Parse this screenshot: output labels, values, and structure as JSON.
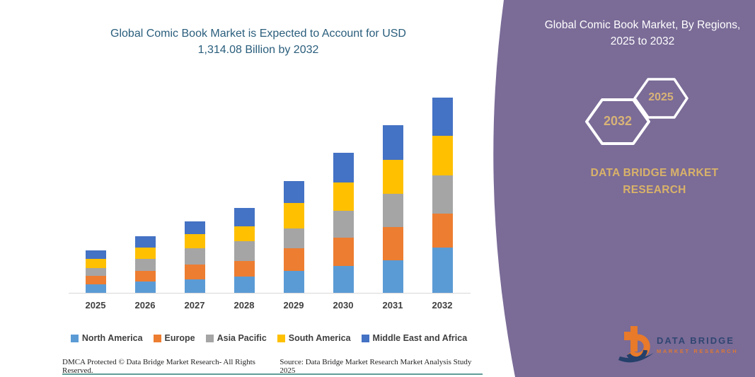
{
  "colors": {
    "headline": "#2A5E7C",
    "axis_labels": "#3F3F3F",
    "axis_line": "#D8D8D8",
    "footer_text": "#222222",
    "divider_teal": "#2E7C74",
    "panel_purple": "#7A6B97",
    "accent_gold": "#D8B377",
    "hexagon_outline": "#FFFFFF",
    "logo_navy": "#24406B",
    "logo_orange": "#E87A2A"
  },
  "left_section": {
    "headline_line1": "Global Comic Book Market is Expected to Account for USD",
    "headline_line2": "1,314.08 Billion by 2032",
    "footer": {
      "copyright": "DMCA Protected © Data Bridge Market Research-  All Rights Reserved.",
      "source": "Source: Data Bridge Market Research  Market Analysis Study 2025"
    }
  },
  "chart_data": {
    "type": "bar",
    "stacked": true,
    "title": "Global Comic Book Market is Expected to Account for USD 1,314.08 Billion by 2032",
    "unit": "USD Billion (values estimated from bar heights; no numeric axis shown)",
    "categories": [
      "2025",
      "2026",
      "2027",
      "2028",
      "2029",
      "2030",
      "2031",
      "2032"
    ],
    "series": [
      {
        "name": "North America",
        "color": "#5B9BD5",
        "values": [
          57,
          78,
          92,
          112,
          148,
          183,
          220,
          305
        ]
      },
      {
        "name": "Europe",
        "color": "#ED7D31",
        "values": [
          58,
          72,
          98,
          104,
          150,
          190,
          224,
          227
        ]
      },
      {
        "name": "Asia Pacific",
        "color": "#A5A5A5",
        "values": [
          52,
          77,
          108,
          130,
          135,
          182,
          224,
          258
        ]
      },
      {
        "name": "South America",
        "color": "#FFC000",
        "values": [
          62,
          76,
          95,
          103,
          170,
          187,
          227,
          265
        ]
      },
      {
        "name": "Middle East and Africa",
        "color": "#4472C4",
        "values": [
          57,
          80,
          90,
          121,
          149,
          200,
          235,
          259
        ]
      }
    ],
    "totals_by_year": [
      286,
      383,
      483,
      570,
      752,
      942,
      1130,
      1314
    ],
    "xlabel": "",
    "ylabel": "",
    "ylim": [
      0,
      1400
    ],
    "grid": false,
    "y_axis_visible": false,
    "legend_position": "bottom"
  },
  "panel": {
    "title": "Global Comic Book Market, By Regions, 2025 to 2032",
    "hexagons": [
      {
        "label": "2032"
      },
      {
        "label": "2025"
      }
    ],
    "brand_line1": "DATA BRIDGE MARKET",
    "brand_line2": "RESEARCH",
    "logo": {
      "line1": "DATA BRIDGE",
      "line2": "MARKET RESEARCH"
    }
  }
}
